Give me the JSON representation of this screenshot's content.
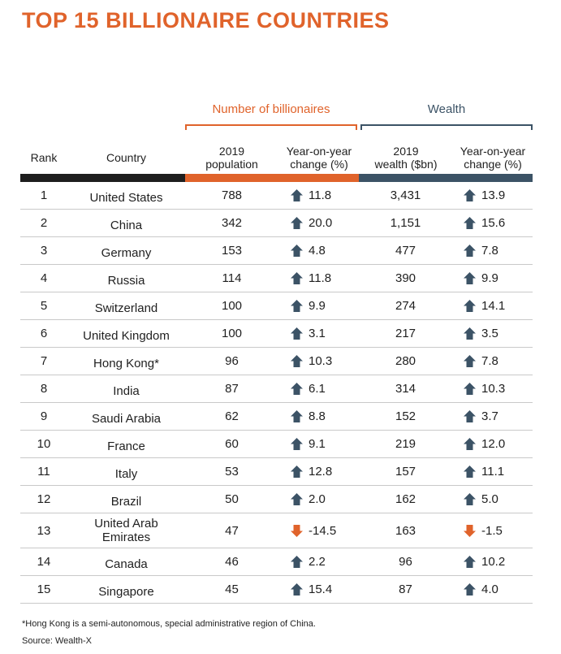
{
  "title": "TOP 15 BILLIONAIRE COUNTRIES",
  "groups": {
    "billionaires": "Number of billionaires",
    "wealth": "Wealth"
  },
  "headers": {
    "rank": "Rank",
    "country": "Country",
    "population": [
      "2019",
      "population"
    ],
    "pop_change": [
      "Year-on-year",
      "change (%)"
    ],
    "wealth": [
      "2019",
      "wealth ($bn)"
    ],
    "wealth_change": [
      "Year-on-year",
      "change (%)"
    ]
  },
  "colors": {
    "accent_orange": "#e0632b",
    "slate": "#3c5366",
    "dark": "#1e1e1e"
  },
  "icons": {
    "up": "house-up-arrow-icon",
    "down": "down-arrow-icon"
  },
  "rows": [
    {
      "rank": "1",
      "country": "United States",
      "population": "788",
      "pop_change": "11.8",
      "pop_dir": "up",
      "wealth": "3,431",
      "wealth_change": "13.9",
      "wealth_dir": "up"
    },
    {
      "rank": "2",
      "country": "China",
      "population": "342",
      "pop_change": "20.0",
      "pop_dir": "up",
      "wealth": "1,151",
      "wealth_change": "15.6",
      "wealth_dir": "up"
    },
    {
      "rank": "3",
      "country": "Germany",
      "population": "153",
      "pop_change": "4.8",
      "pop_dir": "up",
      "wealth": "477",
      "wealth_change": "7.8",
      "wealth_dir": "up"
    },
    {
      "rank": "4",
      "country": "Russia",
      "population": "114",
      "pop_change": "11.8",
      "pop_dir": "up",
      "wealth": "390",
      "wealth_change": "9.9",
      "wealth_dir": "up"
    },
    {
      "rank": "5",
      "country": "Switzerland",
      "population": "100",
      "pop_change": "9.9",
      "pop_dir": "up",
      "wealth": "274",
      "wealth_change": "14.1",
      "wealth_dir": "up"
    },
    {
      "rank": "6",
      "country": "United Kingdom",
      "population": "100",
      "pop_change": "3.1",
      "pop_dir": "up",
      "wealth": "217",
      "wealth_change": "3.5",
      "wealth_dir": "up"
    },
    {
      "rank": "7",
      "country": "Hong Kong*",
      "population": "96",
      "pop_change": "10.3",
      "pop_dir": "up",
      "wealth": "280",
      "wealth_change": "7.8",
      "wealth_dir": "up"
    },
    {
      "rank": "8",
      "country": "India",
      "population": "87",
      "pop_change": "6.1",
      "pop_dir": "up",
      "wealth": "314",
      "wealth_change": "10.3",
      "wealth_dir": "up"
    },
    {
      "rank": "9",
      "country": "Saudi Arabia",
      "population": "62",
      "pop_change": "8.8",
      "pop_dir": "up",
      "wealth": "152",
      "wealth_change": "3.7",
      "wealth_dir": "up"
    },
    {
      "rank": "10",
      "country": "France",
      "population": "60",
      "pop_change": "9.1",
      "pop_dir": "up",
      "wealth": "219",
      "wealth_change": "12.0",
      "wealth_dir": "up"
    },
    {
      "rank": "11",
      "country": "Italy",
      "population": "53",
      "pop_change": "12.8",
      "pop_dir": "up",
      "wealth": "157",
      "wealth_change": "11.1",
      "wealth_dir": "up"
    },
    {
      "rank": "12",
      "country": "Brazil",
      "population": "50",
      "pop_change": "2.0",
      "pop_dir": "up",
      "wealth": "162",
      "wealth_change": "5.0",
      "wealth_dir": "up"
    },
    {
      "rank": "13",
      "country": "United Arab Emirates",
      "country_lines": [
        "United Arab",
        "Emirates"
      ],
      "population": "47",
      "pop_change": "-14.5",
      "pop_dir": "down",
      "wealth": "163",
      "wealth_change": "-1.5",
      "wealth_dir": "down"
    },
    {
      "rank": "14",
      "country": "Canada",
      "population": "46",
      "pop_change": "2.2",
      "pop_dir": "up",
      "wealth": "96",
      "wealth_change": "10.2",
      "wealth_dir": "up"
    },
    {
      "rank": "15",
      "country": "Singapore",
      "population": "45",
      "pop_change": "15.4",
      "pop_dir": "up",
      "wealth": "87",
      "wealth_change": "4.0",
      "wealth_dir": "up"
    }
  ],
  "footnote": "*Hong Kong is a semi-autonomous, special administrative region of China.",
  "source": "Source: Wealth-X"
}
